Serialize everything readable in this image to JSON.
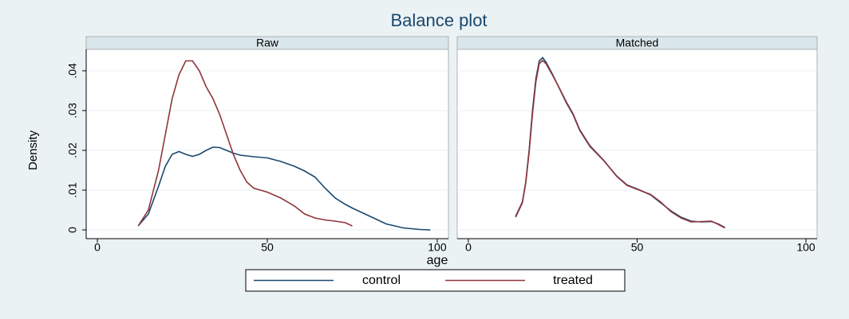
{
  "title": "Balance plot",
  "x_label": "age",
  "y_label": "Density",
  "chart_data": [
    {
      "type": "line",
      "title": "Raw",
      "x": [
        12,
        15,
        18,
        20,
        22,
        24,
        26,
        28,
        30,
        32,
        34,
        36,
        38,
        40,
        42,
        44,
        46,
        50,
        54,
        58,
        61,
        64,
        67,
        70,
        73,
        75,
        80,
        85,
        90,
        95,
        98
      ],
      "series": [
        {
          "name": "control",
          "color": "#1a476f",
          "values": [
            0.001,
            0.004,
            0.011,
            0.016,
            0.019,
            0.0197,
            0.019,
            0.0185,
            0.019,
            0.02,
            0.0208,
            0.0207,
            0.02,
            0.0193,
            0.0188,
            0.0186,
            0.0184,
            0.0181,
            0.0172,
            0.016,
            0.0148,
            0.0133,
            0.0105,
            0.008,
            0.0064,
            0.0055,
            0.0035,
            0.0015,
            0.0005,
            0.0001,
            0
          ]
        },
        {
          "name": "treated",
          "color": "#90353b",
          "values": [
            0.001,
            0.005,
            0.015,
            0.024,
            0.033,
            0.039,
            0.0425,
            0.0425,
            0.04,
            0.036,
            0.033,
            0.029,
            0.024,
            0.019,
            0.015,
            0.012,
            0.0105,
            0.0095,
            0.008,
            0.006,
            0.004,
            0.003,
            0.0025,
            0.0022,
            0.0018,
            0.001,
            null,
            null,
            null,
            null,
            null
          ]
        }
      ],
      "xlim": [
        -3.3,
        103.3
      ],
      "ylim": [
        -0.0022,
        0.0454
      ],
      "xticks": [
        0,
        50,
        100
      ],
      "yticks": [
        0,
        {
          "value": 0.01,
          "label": ".01"
        },
        {
          "value": 0.02,
          "label": ".02"
        },
        {
          "value": 0.03,
          "label": ".03"
        },
        {
          "value": 0.04,
          "label": ".04"
        }
      ],
      "grid": true
    },
    {
      "type": "line",
      "title": "Matched",
      "x": [
        14,
        16,
        17,
        18,
        19,
        20,
        21,
        22,
        23,
        25,
        27,
        29,
        31,
        33,
        36,
        40,
        44,
        47,
        50,
        54,
        57,
        60,
        63,
        66,
        69,
        72,
        74,
        76
      ],
      "series": [
        {
          "name": "control",
          "color": "#1a476f",
          "values": [
            0.0034,
            0.007,
            0.012,
            0.02,
            0.03,
            0.038,
            0.0425,
            0.0433,
            0.0422,
            0.039,
            0.0355,
            0.032,
            0.029,
            0.025,
            0.021,
            0.0175,
            0.0135,
            0.0113,
            0.0103,
            0.0088,
            0.0068,
            0.0048,
            0.0032,
            0.0022,
            0.002,
            0.0021,
            0.0015,
            0.0006
          ]
        },
        {
          "name": "treated",
          "color": "#90353b",
          "values": [
            0.0032,
            0.0068,
            0.0118,
            0.0195,
            0.0292,
            0.0372,
            0.0418,
            0.0426,
            0.0418,
            0.0388,
            0.0356,
            0.0322,
            0.0292,
            0.0252,
            0.0212,
            0.0176,
            0.0134,
            0.0112,
            0.0102,
            0.0089,
            0.007,
            0.0046,
            0.003,
            0.002,
            0.0021,
            0.0022,
            0.0014,
            0.0005
          ]
        }
      ],
      "xlim": [
        -3.3,
        103.3
      ],
      "ylim": [
        -0.0022,
        0.0454
      ],
      "xticks": [
        0,
        50,
        100
      ],
      "grid": true
    }
  ]
}
